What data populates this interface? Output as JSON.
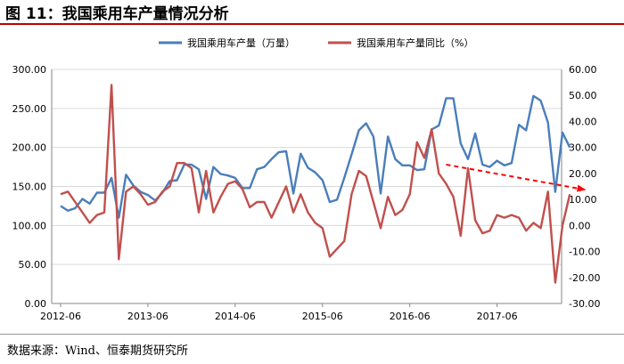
{
  "figure": {
    "title": "图 11：我国乘用车产量情况分析",
    "source": "数据来源：Wind、恒泰期货研究所",
    "accent_color": "#c00000"
  },
  "chart_data": {
    "type": "line",
    "x_ticks": [
      "2012-06",
      "2013-06",
      "2014-06",
      "2015-06",
      "2016-06",
      "2017-06"
    ],
    "left_axis": {
      "min": 0,
      "max": 300,
      "step": 50,
      "tick_labels": [
        "0.00",
        "50.00",
        "100.00",
        "150.00",
        "200.00",
        "250.00",
        "300.00"
      ]
    },
    "right_axis": {
      "min": -30,
      "max": 60,
      "step": 10,
      "tick_labels": [
        "-30.00",
        "-20.00",
        "-10.00",
        "0.00",
        "10.00",
        "20.00",
        "30.00",
        "40.00",
        "50.00",
        "60.00"
      ]
    },
    "grid": true,
    "legend_position": "top",
    "series": [
      {
        "name": "我国乘用车产量（万量）",
        "axis": "left",
        "color": "#4a7ebb",
        "values": [
          125,
          119,
          122,
          134,
          128,
          142,
          142,
          161,
          110,
          165,
          151,
          143,
          139,
          132,
          142,
          157,
          158,
          178,
          178,
          172,
          134,
          175,
          166,
          164,
          161,
          148,
          148,
          172,
          175,
          185,
          194,
          195,
          141,
          192,
          174,
          168,
          158,
          130,
          133,
          161,
          191,
          222,
          231,
          214,
          141,
          214,
          185,
          177,
          177,
          171,
          172,
          223,
          228,
          263,
          263,
          205,
          185,
          218,
          178,
          175,
          183,
          177,
          180,
          229,
          222,
          266,
          260,
          232,
          143,
          219,
          200
        ]
      },
      {
        "name": "我国乘用车产量同比（%）",
        "axis": "right",
        "color": "#c0504d",
        "values": [
          12,
          13,
          9,
          5,
          1,
          4,
          5,
          54,
          -13,
          13,
          15,
          12,
          8,
          9,
          13,
          15,
          24,
          24,
          22,
          5,
          21,
          5,
          11,
          16,
          17,
          14,
          7,
          9,
          9,
          3,
          9,
          15,
          5,
          12,
          5,
          1,
          -1,
          -12,
          -9,
          -6,
          12,
          21,
          19,
          9,
          -1,
          11,
          4,
          6,
          12,
          32,
          26,
          37,
          20,
          16,
          11,
          -4,
          22,
          2,
          -3,
          -2,
          4,
          3,
          4,
          3,
          -2,
          1,
          -1,
          13,
          -22,
          0,
          12
        ]
      }
    ],
    "annotations": [
      {
        "type": "dashed-arrow",
        "color": "#ff0000",
        "from": {
          "x_index": 53,
          "y_left": 178
        },
        "to": {
          "x_index": 72,
          "y_left": 146
        }
      }
    ]
  }
}
